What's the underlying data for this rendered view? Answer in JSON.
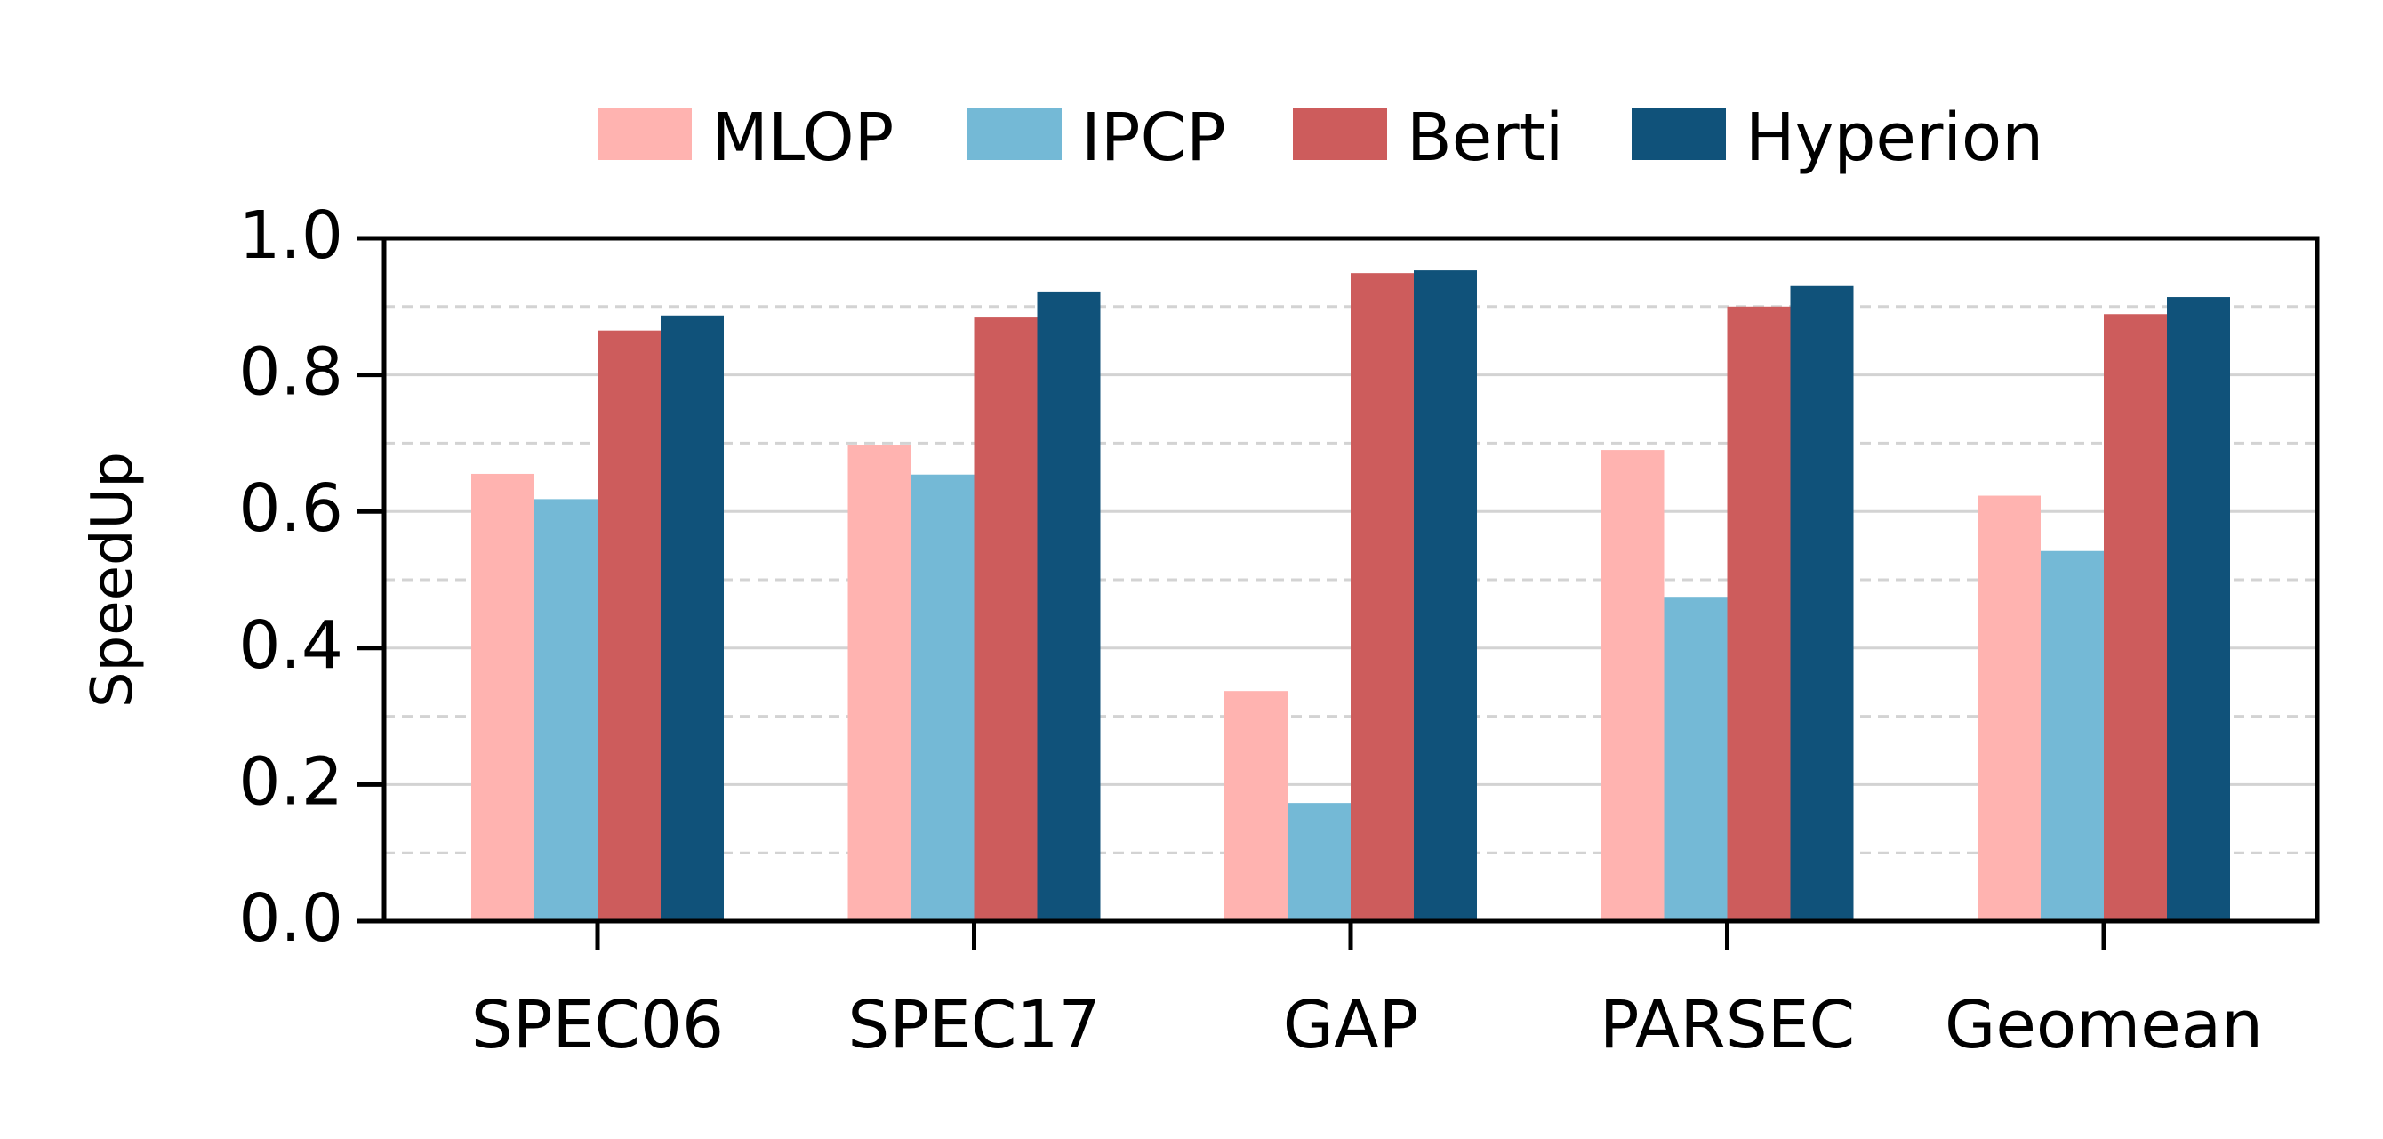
{
  "chart_data": {
    "type": "bar",
    "title": "",
    "xlabel": "",
    "ylabel": "SpeedUp",
    "ylim": [
      0,
      1.0
    ],
    "yticks": [
      "0.0",
      "0.2",
      "0.4",
      "0.6",
      "0.8",
      "1.0"
    ],
    "grid": {
      "major": true,
      "minor": true,
      "major_style": "solid",
      "minor_style": "dashed"
    },
    "legend_position": "top-center",
    "categories": [
      "SPEC06",
      "SPEC17",
      "GAP",
      "PARSEC",
      "Geomean"
    ],
    "series": [
      {
        "name": "MLOP",
        "color": "#FFB3B0",
        "values": [
          0.655,
          0.697,
          0.337,
          0.69,
          0.623
        ]
      },
      {
        "name": "IPCP",
        "color": "#74B9D6",
        "values": [
          0.618,
          0.654,
          0.173,
          0.475,
          0.542
        ]
      },
      {
        "name": "Berti",
        "color": "#CD5C5C",
        "values": [
          0.865,
          0.884,
          0.949,
          0.9,
          0.889
        ]
      },
      {
        "name": "Hyperion",
        "color": "#10527A",
        "values": [
          0.887,
          0.922,
          0.953,
          0.93,
          0.914
        ]
      }
    ]
  }
}
